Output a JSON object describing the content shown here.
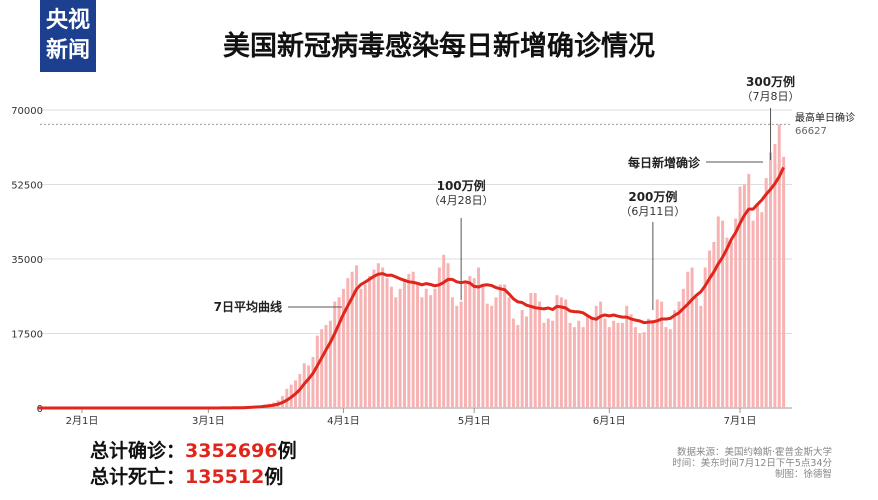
{
  "logo": {
    "line1": "央视",
    "line2": "新闻"
  },
  "title": "美国新冠病毒感染每日新增确诊情况",
  "totals": {
    "confirmed_label": "总计确诊：",
    "confirmed_value": "3352696",
    "confirmed_unit": "例",
    "deaths_label": "总计死亡：",
    "deaths_value": "135512",
    "deaths_unit": "例"
  },
  "source": {
    "line1": "数据来源：美国约翰斯·霍普金斯大学",
    "line2": "时间：美东时间7月12日下午5点34分",
    "line3": "制图：徐德智"
  },
  "chart_data": {
    "type": "bar",
    "start_date": "2020-01-22",
    "ylim": [
      0,
      70000
    ],
    "yticks": [
      "0",
      "17500",
      "35000",
      "52500",
      "70000"
    ],
    "xticks": [
      {
        "label": "2月1日",
        "date": "2020-02-01"
      },
      {
        "label": "3月1日",
        "date": "2020-03-01"
      },
      {
        "label": "4月1日",
        "date": "2020-04-01"
      },
      {
        "label": "5月1日",
        "date": "2020-05-01"
      },
      {
        "label": "6月1日",
        "date": "2020-06-01"
      },
      {
        "label": "7月1日",
        "date": "2020-07-01"
      }
    ],
    "grid": true,
    "colors": {
      "bars": "#f7b3b3",
      "avg_line": "#e0261b"
    },
    "series": [
      {
        "name": "每日新增确诊",
        "values": [
          1,
          0,
          1,
          0,
          3,
          0,
          0,
          0,
          0,
          1,
          1,
          0,
          3,
          0,
          0,
          0,
          0,
          0,
          0,
          0,
          1,
          0,
          0,
          0,
          1,
          0,
          0,
          0,
          0,
          0,
          0,
          0,
          0,
          0,
          0,
          0,
          1,
          2,
          3,
          10,
          20,
          25,
          30,
          50,
          70,
          100,
          120,
          180,
          250,
          350,
          500,
          600,
          800,
          1000,
          1300,
          1800,
          2800,
          4500,
          5500,
          6500,
          8000,
          10500,
          10000,
          12000,
          17000,
          18500,
          19500,
          20500,
          25000,
          26000,
          28000,
          30500,
          32000,
          33500,
          28000,
          29000,
          31000,
          32500,
          34000,
          33000,
          30500,
          28500,
          26000,
          28000,
          30000,
          31500,
          32000,
          29000,
          26000,
          28000,
          26500,
          28000,
          33000,
          36000,
          34000,
          26000,
          24000,
          25000,
          29500,
          31000,
          30500,
          33000,
          29000,
          24500,
          24000,
          26000,
          29000,
          29000,
          26000,
          21000,
          19500,
          23000,
          21500,
          27000,
          27000,
          25000,
          20000,
          21000,
          20500,
          26500,
          26000,
          25500,
          20000,
          19000,
          20500,
          19000,
          22000,
          21500,
          24000,
          25000,
          21000,
          19000,
          20500,
          20000,
          20000,
          24000,
          22000,
          19000,
          17500,
          17800,
          21000,
          20500,
          25500,
          25000,
          19000,
          18500,
          23000,
          25000,
          28000,
          32000,
          33000,
          26000,
          24000,
          33000,
          37000,
          39000,
          45000,
          44000,
          40000,
          39000,
          44500,
          52000,
          52500,
          55000,
          44000,
          48000,
          46000,
          54000,
          60000,
          62000,
          66627,
          59000
        ]
      },
      {
        "name": "7日平均曲线",
        "type": "line",
        "window": 7
      }
    ],
    "annotations": [
      {
        "label": "100万例",
        "sub": "（4月28日）",
        "date": "2020-04-28"
      },
      {
        "label": "200万例",
        "sub": "（6月11日）",
        "date": "2020-06-11"
      },
      {
        "label": "300万例",
        "sub": "（7月8日）",
        "date": "2020-07-08"
      },
      {
        "label": "最高单日确诊",
        "value": "66627"
      },
      {
        "label": "每日新增确诊"
      },
      {
        "label": "7日平均曲线"
      }
    ]
  }
}
